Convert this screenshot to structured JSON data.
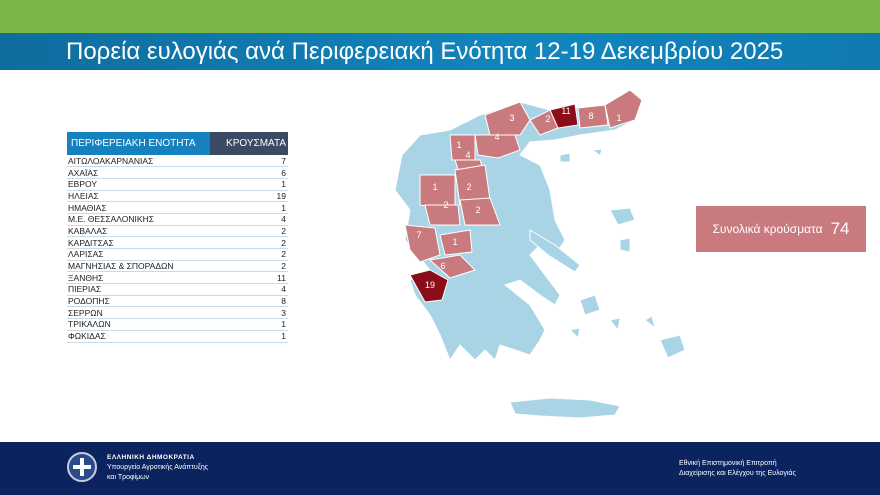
{
  "header": {
    "title": "Πορεία ευλογιάς ανά Περιφερειακή Ενότητα 12-19 Δεκεμβρίου 2025"
  },
  "table": {
    "columns": [
      "ΠΕΡΙΦΕΡΕΙΑΚΗ ΕΝΟΤΗΤΑ",
      "ΚΡΟΥΣΜΑΤΑ"
    ],
    "rows": [
      [
        "ΑΙΤΩΛΟΑΚΑΡΝΑΝΙΑΣ",
        "7"
      ],
      [
        "ΑΧΑΪΑΣ",
        "6"
      ],
      [
        "ΕΒΡΟΥ",
        "1"
      ],
      [
        "ΗΛΕΙΑΣ",
        "19"
      ],
      [
        "ΗΜΑΘΙΑΣ",
        "1"
      ],
      [
        "Μ.Ε. ΘΕΣΣΑΛΟΝΙΚΗΣ",
        "4"
      ],
      [
        "ΚΑΒΑΛΑΣ",
        "2"
      ],
      [
        "ΚΑΡΔΙΤΣΑΣ",
        "2"
      ],
      [
        "ΛΑΡΙΣΑΣ",
        "2"
      ],
      [
        "ΜΑΓΝΗΣΙΑΣ & ΣΠΟΡΑΔΩΝ",
        "2"
      ],
      [
        "ΞΑΝΘΗΣ",
        "11"
      ],
      [
        "ΠΙΕΡΙΑΣ",
        "4"
      ],
      [
        "ΡΟΔΟΠΗΣ",
        "8"
      ],
      [
        "ΣΕΡΡΩΝ",
        "3"
      ],
      [
        "ΤΡΙΚΑΛΩΝ",
        "1"
      ],
      [
        "ΦΩΚΙΔΑΣ",
        "1"
      ]
    ]
  },
  "total": {
    "label": "Συνολικά κρούσματα",
    "value": "74"
  },
  "map": {
    "colors": {
      "base": "#a8d4e6",
      "affected": "#c97a7e",
      "high": "#8b0d1a"
    },
    "labels": [
      "3",
      "2",
      "11",
      "8",
      "1",
      "1",
      "4",
      "4",
      "1",
      "2",
      "2",
      "2",
      "7",
      "1",
      "6",
      "19"
    ]
  },
  "footer": {
    "left": [
      "ΕΛΛΗΝΙΚΗ ΔΗΜΟΚΡΑΤΙΑ",
      "Υπουργείο Αγροτικής Ανάπτυξης",
      "και Τροφίμων"
    ],
    "right": [
      "Εθνική Επιστημονική Επιτροπή",
      "Διαχείρισης και Ελέγχου της Ευλογιάς"
    ]
  },
  "icons": {
    "emblem": "greek-coat-of-arms"
  }
}
